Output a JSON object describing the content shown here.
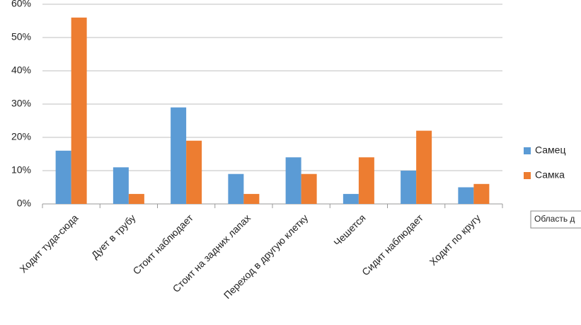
{
  "chart_data": {
    "type": "bar",
    "categories": [
      "Ходит туда-сюда",
      "Дует в трубу",
      "Стоит наблюдает",
      "Стоит на задних лапах",
      "Переход в другую клетку",
      "Чешется",
      "Сидит наблюдает",
      "Ходит по кругу"
    ],
    "series": [
      {
        "name": "Самец",
        "color": "#5b9bd5",
        "values": [
          16,
          11,
          29,
          9,
          14,
          3,
          10,
          5
        ]
      },
      {
        "name": "Самка",
        "color": "#ed7d31",
        "values": [
          56,
          3,
          19,
          3,
          9,
          14,
          22,
          6
        ]
      }
    ],
    "ylim": [
      0,
      60
    ],
    "yticks": [
      {
        "value": 0,
        "label": "0%"
      },
      {
        "value": 10,
        "label": "10%"
      },
      {
        "value": 20,
        "label": "20%"
      },
      {
        "value": 30,
        "label": "30%"
      },
      {
        "value": 40,
        "label": "40%"
      },
      {
        "value": 50,
        "label": "50%"
      },
      {
        "value": 60,
        "label": "60%"
      }
    ],
    "grid": true,
    "legend": "right",
    "tooltip": "Область д"
  }
}
